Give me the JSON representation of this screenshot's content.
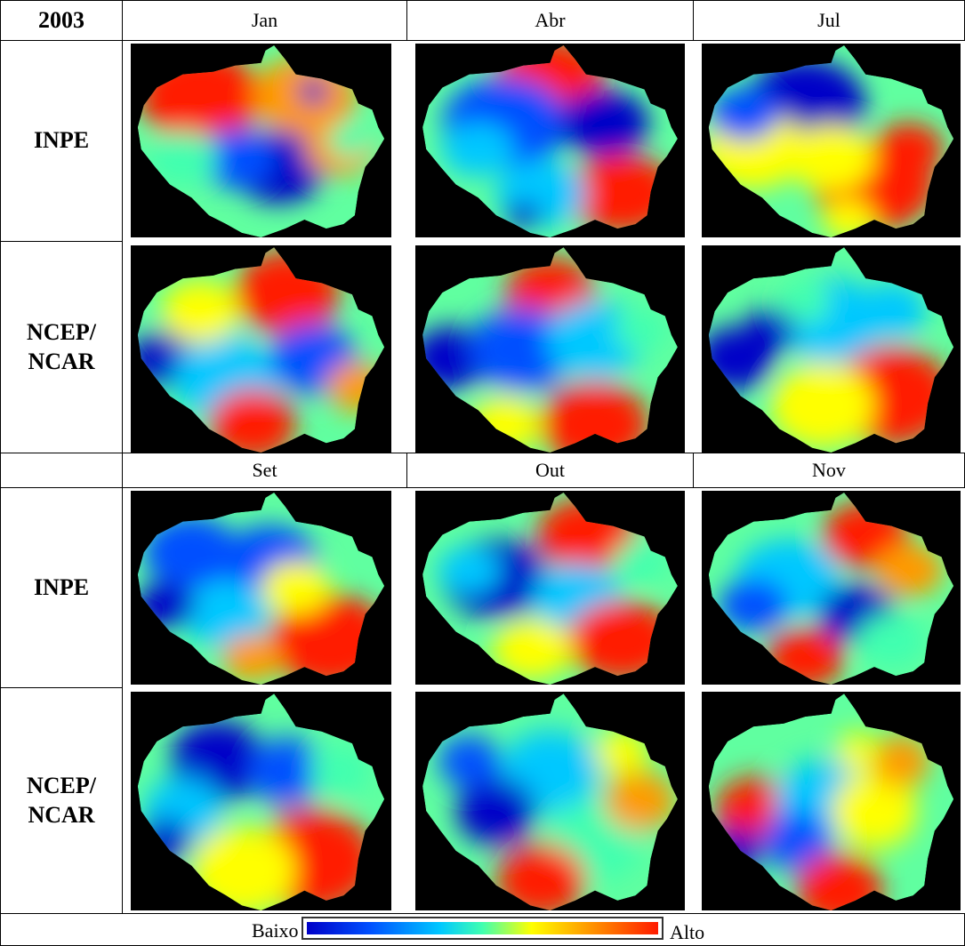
{
  "year": "2003",
  "blocks": [
    {
      "months": [
        "Jan",
        "Abr",
        "Jul"
      ]
    },
    {
      "months": [
        "Set",
        "Out",
        "Nov"
      ]
    }
  ],
  "rows": [
    {
      "label_lines": [
        "INPE"
      ]
    },
    {
      "label_lines": [
        "NCEP/",
        "NCAR"
      ]
    }
  ],
  "legend": {
    "low": "Baixo",
    "high": "Alto"
  },
  "colors": {
    "low": "#0000c8",
    "mid": "#40ffb0",
    "high": "#ff1a00",
    "background": "#000000"
  }
}
